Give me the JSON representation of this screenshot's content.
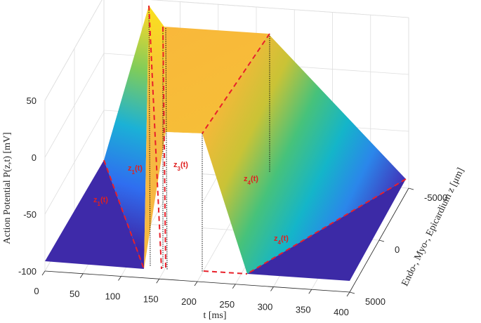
{
  "chart_data": {
    "type": "surface",
    "title": "",
    "xlabel": "t [ms]",
    "ylabel": "Endo-, Myo-, Epicardium z  [μm]",
    "zlabel": "Action Potential P(z,t) [mV]",
    "xticks": [
      "0",
      "50",
      "100",
      "150",
      "200",
      "250",
      "300",
      "350",
      "400"
    ],
    "yticks": [
      "-5000",
      "0",
      "5000"
    ],
    "zticks": [
      "50",
      "0",
      "-50",
      "-100"
    ],
    "xlim": [
      0,
      400
    ],
    "ylim": [
      -5000,
      5000
    ],
    "zlim": [
      -100,
      50
    ],
    "colormap": "parula",
    "boundary_labels": [
      "z1(t)",
      "z2(t)",
      "z3(t)",
      "z4(t)",
      "z1(t)",
      "z4(t)"
    ],
    "profile_at_z_minus_5000": {
      "t": [
        0,
        150,
        160,
        170,
        200,
        330,
        400
      ],
      "p": [
        -90,
        -90,
        80,
        70,
        70,
        -90,
        -90
      ]
    },
    "profile_at_z_plus_5000": {
      "t": [
        0,
        150,
        160,
        170,
        200,
        280,
        400
      ],
      "p": [
        -90,
        -90,
        -90,
        -90,
        -90,
        -90,
        -90
      ]
    }
  }
}
